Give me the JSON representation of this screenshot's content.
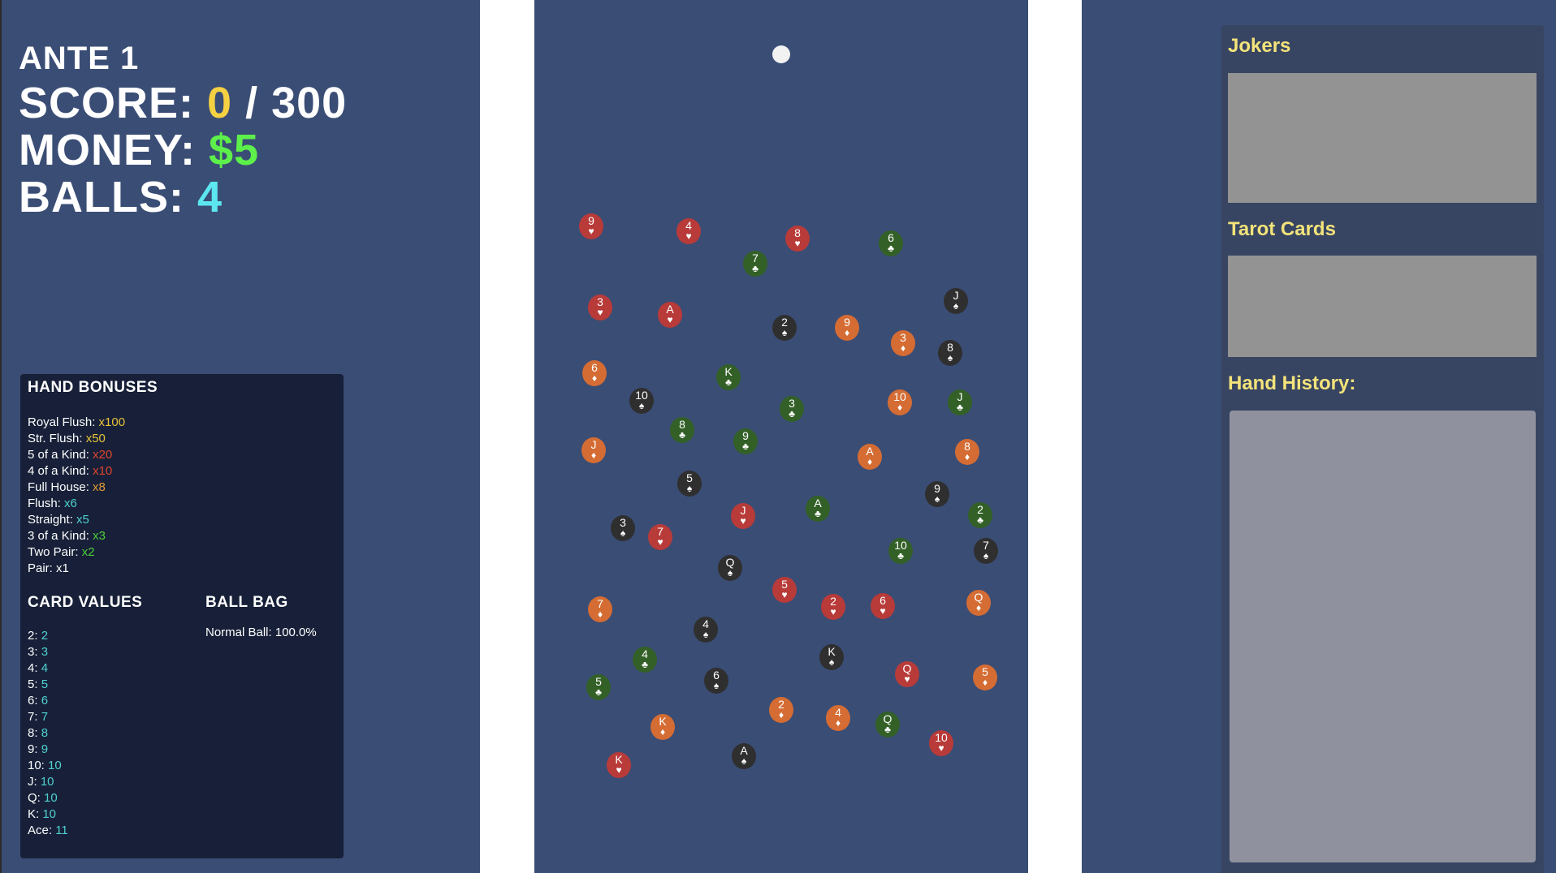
{
  "stats": {
    "ante_label": "ANTE 1",
    "score_label": "SCORE: ",
    "score_value": "0",
    "score_target": " / 300",
    "money_label": "MONEY: ",
    "money_value": "$5",
    "balls_label": "BALLS: ",
    "balls_value": "4"
  },
  "hand_bonuses": {
    "title": "HAND BONUSES",
    "items": [
      {
        "label": "Royal Flush: ",
        "value": "x100",
        "color": "#e8c23a"
      },
      {
        "label": "Str. Flush: ",
        "value": "x50",
        "color": "#e8c23a"
      },
      {
        "label": "5 of a Kind: ",
        "value": "x20",
        "color": "#e0452e"
      },
      {
        "label": "4 of a Kind: ",
        "value": "x10",
        "color": "#e0452e"
      },
      {
        "label": "Full House: ",
        "value": "x8",
        "color": "#e09a3a"
      },
      {
        "label": "Flush: ",
        "value": "x6",
        "color": "#4fd0d0"
      },
      {
        "label": "Straight: ",
        "value": "x5",
        "color": "#4fd0d0"
      },
      {
        "label": "3 of a Kind: ",
        "value": "x3",
        "color": "#4ccf3a"
      },
      {
        "label": "Two Pair: ",
        "value": "x2",
        "color": "#4ccf3a"
      },
      {
        "label": "Pair: ",
        "value": "x1",
        "color": "#ffffff"
      }
    ]
  },
  "card_values": {
    "title": "CARD VALUES",
    "items": [
      {
        "label": "2: ",
        "value": "2"
      },
      {
        "label": "3: ",
        "value": "3"
      },
      {
        "label": "4: ",
        "value": "4"
      },
      {
        "label": "5: ",
        "value": "5"
      },
      {
        "label": "6: ",
        "value": "6"
      },
      {
        "label": "7: ",
        "value": "7"
      },
      {
        "label": "8: ",
        "value": "8"
      },
      {
        "label": "9: ",
        "value": "9"
      },
      {
        "label": "10: ",
        "value": "10"
      },
      {
        "label": "J: ",
        "value": "10"
      },
      {
        "label": "Q: ",
        "value": "10"
      },
      {
        "label": "K: ",
        "value": "10"
      },
      {
        "label": "Ace: ",
        "value": "11"
      }
    ]
  },
  "ball_bag": {
    "title": "BALL BAG",
    "items": [
      "Normal Ball: 100.0%"
    ]
  },
  "right_panel": {
    "jokers_title": "Jokers",
    "tarot_title": "Tarot Cards",
    "history_title": "Hand History:"
  },
  "suit_colors": {
    "hearts": "#b83b39",
    "diamonds": "#d46c33",
    "clubs": "#336027",
    "spades": "#2f2f2f"
  },
  "suit_symbols": {
    "hearts": "♥",
    "diamonds": "♦",
    "clubs": "♣",
    "spades": "♠"
  },
  "chips": [
    {
      "rank": "9",
      "suit": "hearts"
    },
    {
      "rank": "4",
      "suit": "hearts"
    },
    {
      "rank": "8",
      "suit": "hearts"
    },
    {
      "rank": "6",
      "suit": "clubs"
    },
    {
      "rank": "7",
      "suit": "clubs"
    },
    {
      "rank": "J",
      "suit": "spades"
    },
    {
      "rank": "3",
      "suit": "hearts"
    },
    {
      "rank": "A",
      "suit": "hearts"
    },
    {
      "rank": "2",
      "suit": "spades"
    },
    {
      "rank": "9",
      "suit": "diamonds"
    },
    {
      "rank": "3",
      "suit": "diamonds"
    },
    {
      "rank": "8",
      "suit": "spades"
    },
    {
      "rank": "6",
      "suit": "diamonds"
    },
    {
      "rank": "K",
      "suit": "clubs"
    },
    {
      "rank": "10",
      "suit": "spades"
    },
    {
      "rank": "3",
      "suit": "clubs"
    },
    {
      "rank": "10",
      "suit": "diamonds"
    },
    {
      "rank": "J",
      "suit": "clubs"
    },
    {
      "rank": "8",
      "suit": "clubs"
    },
    {
      "rank": "9",
      "suit": "clubs"
    },
    {
      "rank": "J",
      "suit": "diamonds"
    },
    {
      "rank": "A",
      "suit": "diamonds"
    },
    {
      "rank": "8",
      "suit": "diamonds"
    },
    {
      "rank": "5",
      "suit": "spades"
    },
    {
      "rank": "9",
      "suit": "spades"
    },
    {
      "rank": "A",
      "suit": "clubs"
    },
    {
      "rank": "2",
      "suit": "clubs"
    },
    {
      "rank": "J",
      "suit": "hearts"
    },
    {
      "rank": "3",
      "suit": "spades"
    },
    {
      "rank": "7",
      "suit": "hearts"
    },
    {
      "rank": "10",
      "suit": "clubs"
    },
    {
      "rank": "7",
      "suit": "spades"
    },
    {
      "rank": "Q",
      "suit": "spades"
    },
    {
      "rank": "5",
      "suit": "hearts"
    },
    {
      "rank": "2",
      "suit": "hearts"
    },
    {
      "rank": "6",
      "suit": "hearts"
    },
    {
      "rank": "Q",
      "suit": "diamonds"
    },
    {
      "rank": "7",
      "suit": "diamonds"
    },
    {
      "rank": "4",
      "suit": "spades"
    },
    {
      "rank": "K",
      "suit": "spades"
    },
    {
      "rank": "4",
      "suit": "clubs"
    },
    {
      "rank": "Q",
      "suit": "hearts"
    },
    {
      "rank": "5",
      "suit": "diamonds"
    },
    {
      "rank": "5",
      "suit": "clubs"
    },
    {
      "rank": "6",
      "suit": "spades"
    },
    {
      "rank": "2",
      "suit": "diamonds"
    },
    {
      "rank": "4",
      "suit": "diamonds"
    },
    {
      "rank": "Q",
      "suit": "clubs"
    },
    {
      "rank": "K",
      "suit": "diamonds"
    },
    {
      "rank": "10",
      "suit": "hearts"
    },
    {
      "rank": "A",
      "suit": "spades"
    },
    {
      "rank": "K",
      "suit": "hearts"
    }
  ]
}
